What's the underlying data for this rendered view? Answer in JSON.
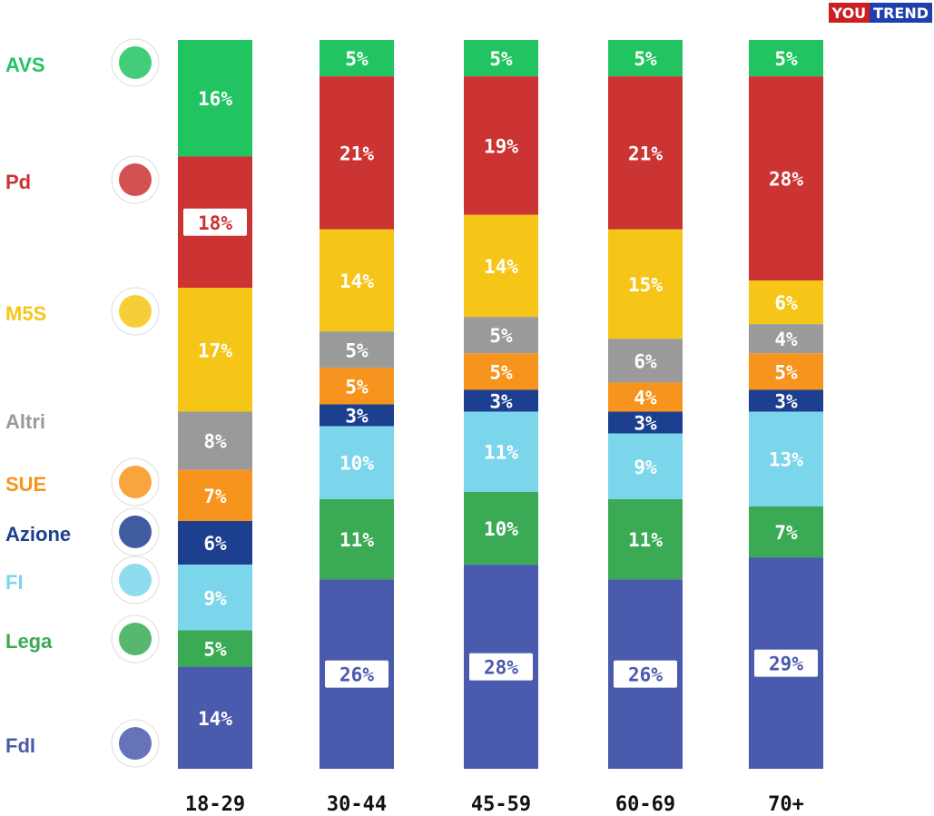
{
  "brand": {
    "part1": "YOU",
    "part2": "TREND",
    "color1": "#cc1f1f",
    "color2": "#1f3fae"
  },
  "chart_data": {
    "type": "bar",
    "stacked": true,
    "categories": [
      "18-29",
      "30-44",
      "45-59",
      "60-69",
      "70+"
    ],
    "series": [
      {
        "name": "AVS",
        "color": "#22c462",
        "logo": "avs-logo",
        "values": [
          16,
          5,
          5,
          5,
          5
        ]
      },
      {
        "name": "Pd",
        "color": "#cc3333",
        "logo": "pd-logo",
        "values": [
          18,
          21,
          19,
          21,
          28
        ]
      },
      {
        "name": "M5S",
        "color": "#f5c518",
        "logo": "m5s-logo",
        "values": [
          17,
          14,
          14,
          15,
          6
        ]
      },
      {
        "name": "Altri",
        "color": "#9a9a9a",
        "logo": null,
        "values": [
          8,
          5,
          5,
          6,
          4
        ]
      },
      {
        "name": "SUE",
        "color": "#f7941d",
        "logo": "sue-logo",
        "values": [
          7,
          5,
          5,
          4,
          5
        ]
      },
      {
        "name": "Azione",
        "color": "#1d3f8f",
        "logo": "azione-logo",
        "values": [
          6,
          3,
          3,
          3,
          3
        ]
      },
      {
        "name": "FI",
        "color": "#7bd6ec",
        "logo": "fi-logo",
        "values": [
          9,
          10,
          11,
          9,
          13
        ]
      },
      {
        "name": "Lega",
        "color": "#3aaa55",
        "logo": "lega-logo",
        "values": [
          5,
          11,
          10,
          11,
          7
        ]
      },
      {
        "name": "FdI",
        "color": "#4a5aad",
        "logo": "fdi-logo",
        "values": [
          14,
          26,
          28,
          26,
          29
        ]
      }
    ],
    "value_suffix": "%",
    "title": "",
    "xlabel": "",
    "ylabel": "",
    "ylim": [
      0,
      100
    ],
    "grid": false,
    "legend": "left"
  }
}
